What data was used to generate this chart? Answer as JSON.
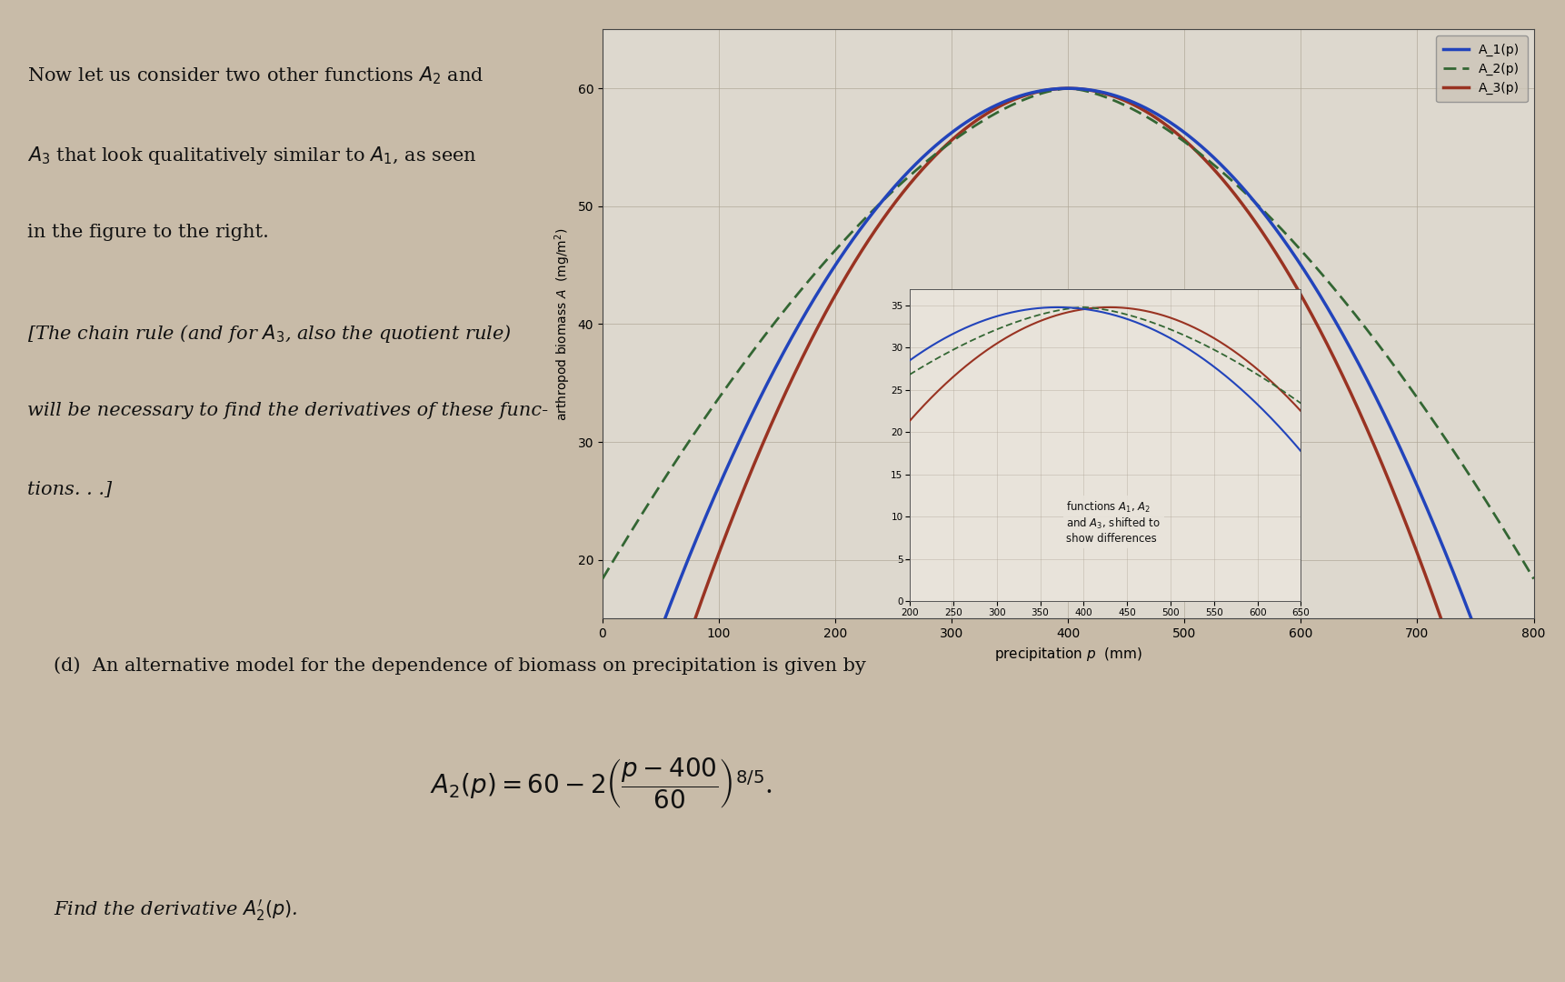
{
  "page_bg": "#c8bba8",
  "plot_bg": "#ddd8ce",
  "text_line1": "Now let us consider two other functions $A_2$ and",
  "text_line2": "$A_3$ that look qualitatively similar to $A_1$, as seen",
  "text_line3": "in the figure to the right.",
  "text_line4": "[The chain rule (and for $A_3$, also the quotient rule)",
  "text_line5": "will be necessary to find the derivatives of these func-",
  "text_line6": "tions. . .]",
  "formula_label": "(d)  An alternative model for the dependence of biomass on precipitation is given by",
  "find_text": "Find the derivative $A_2'(p)$.",
  "xlabel": "precipitation $p$  (mm)",
  "ylabel": "arthropod biomass $A$  (mg/m$^2$)",
  "xlim": [
    0,
    800
  ],
  "ylim": [
    15,
    65
  ],
  "xticks": [
    0,
    100,
    200,
    300,
    400,
    500,
    600,
    700,
    800
  ],
  "yticks": [
    20,
    30,
    40,
    50,
    60
  ],
  "legend_labels": [
    "A_1(p)",
    "A_2(p)",
    "A_3(p)"
  ],
  "A1_color": "#2244bb",
  "A2_color": "#336633",
  "A3_color": "#993322",
  "inset_annotation": "functions $A_1$, $A_2$\nand $A_3$, shifted to\nshow differences"
}
